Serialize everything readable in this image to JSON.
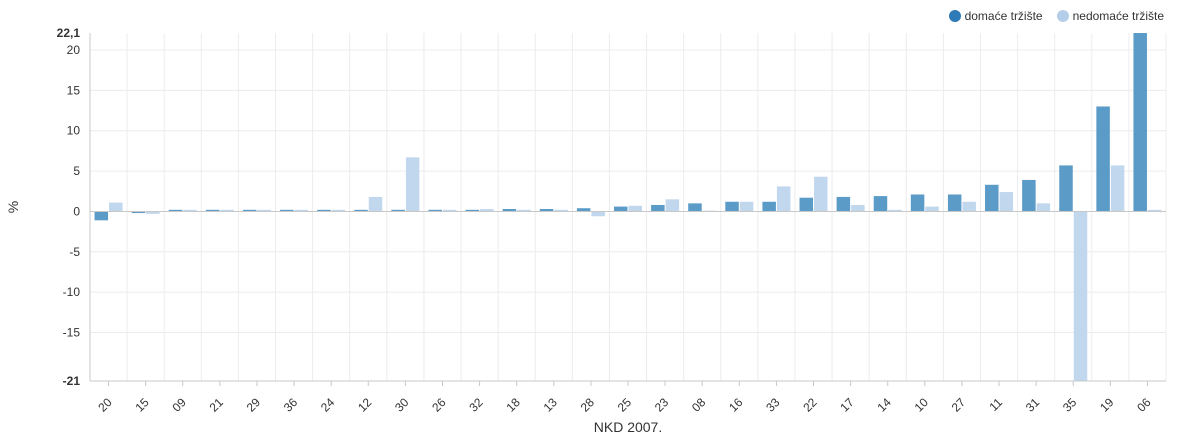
{
  "chart_data": {
    "type": "bar",
    "categories": [
      "20",
      "15",
      "09",
      "21",
      "29",
      "36",
      "24",
      "12",
      "30",
      "26",
      "32",
      "18",
      "13",
      "28",
      "25",
      "23",
      "08",
      "16",
      "33",
      "22",
      "17",
      "14",
      "10",
      "27",
      "11",
      "31",
      "35",
      "19",
      "06"
    ],
    "series": [
      {
        "name": "domaće tržište",
        "color": "#5b9bc8",
        "values": [
          -1.1,
          -0.2,
          0.2,
          0.2,
          0.2,
          0.2,
          0.2,
          0.2,
          0.2,
          0.2,
          0.2,
          0.3,
          0.3,
          0.4,
          0.6,
          0.8,
          1.0,
          1.2,
          1.2,
          1.7,
          1.8,
          1.9,
          2.1,
          2.1,
          3.3,
          3.9,
          5.7,
          13.0,
          22.1
        ]
      },
      {
        "name": "nedomaće tržište",
        "color": "#c1d7ee",
        "values": [
          1.1,
          -0.3,
          0.2,
          0.2,
          0.2,
          0.2,
          0.2,
          1.8,
          6.7,
          0.2,
          0.3,
          0.2,
          0.2,
          -0.6,
          0.7,
          1.5,
          0.1,
          1.2,
          3.1,
          4.3,
          0.8,
          0.2,
          0.6,
          1.2,
          2.4,
          1.0,
          -21.0,
          5.7,
          0.2
        ]
      }
    ],
    "xlabel": "NKD 2007.",
    "ylabel": "%",
    "ylim": [
      -21,
      22.1
    ],
    "yticks": [
      -15,
      -10,
      -5,
      0,
      5,
      10,
      15,
      20
    ],
    "ytick_labels": [
      "-15",
      "-10",
      "-5",
      "0",
      "5",
      "10",
      "15",
      "20"
    ],
    "y_min_label": "-21",
    "y_max_label": "22,1",
    "grid": true,
    "legend_position": "top-right",
    "colors": {
      "axis": "#c8c8c8",
      "grid": "#ececec",
      "text": "#333333"
    }
  }
}
